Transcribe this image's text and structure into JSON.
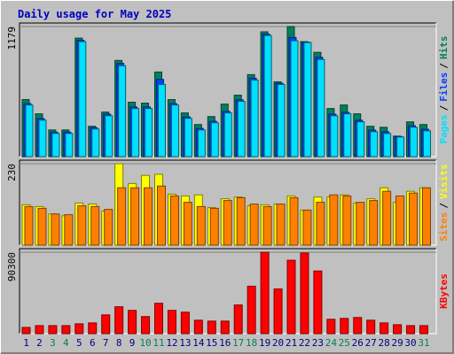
{
  "title": "Daily usage for May 2025",
  "legend_separator": "/",
  "chart_data": [
    {
      "type": "bar",
      "ylim": [
        0,
        1179
      ],
      "yticks": [
        1179
      ],
      "series": [
        {
          "name": "Hits",
          "color": "#00805c",
          "values": [
            517,
            388,
            242,
            242,
            1074,
            275,
            404,
            872,
            493,
            485,
            767,
            517,
            396,
            291,
            363,
            476,
            557,
            743,
            1131,
            678,
            1179,
            1042,
            945,
            436,
            468,
            388,
            275,
            266,
            186,
            315,
            291
          ]
        },
        {
          "name": "Files",
          "color": "#0040ff",
          "values": [
            480,
            345,
            222,
            222,
            1055,
            262,
            385,
            845,
            450,
            450,
            700,
            480,
            360,
            255,
            320,
            410,
            515,
            710,
            1110,
            665,
            1080,
            1038,
            900,
            385,
            400,
            330,
            240,
            225,
            182,
            280,
            248
          ]
        },
        {
          "name": "Pages",
          "color": "#00e0ff",
          "values": [
            468,
            331,
            210,
            210,
            1042,
            250,
            371,
            824,
            436,
            436,
            654,
            468,
            347,
            242,
            307,
            396,
            501,
            694,
            1098,
            654,
            1050,
            1034,
            880,
            371,
            388,
            315,
            226,
            210,
            178,
            266,
            234
          ]
        }
      ]
    },
    {
      "type": "bar",
      "ylim": [
        0,
        230
      ],
      "yticks": [
        230
      ],
      "series": [
        {
          "name": "Visits",
          "color": "#ffff00",
          "values": [
            114,
            109,
            88,
            83,
            119,
            116,
            96,
            230,
            174,
            197,
            200,
            144,
            139,
            142,
            106,
            131,
            136,
            111,
            114,
            116,
            139,
            99,
            136,
            136,
            142,
            119,
            131,
            162,
            121,
            152,
            162
          ]
        },
        {
          "name": "Sites",
          "color": "#ff8000",
          "values": [
            109,
            104,
            88,
            86,
            111,
            109,
            101,
            162,
            162,
            162,
            167,
            139,
            121,
            109,
            104,
            126,
            134,
            116,
            109,
            116,
            134,
            99,
            121,
            142,
            139,
            121,
            126,
            152,
            139,
            147,
            162
          ]
        }
      ]
    },
    {
      "type": "bar",
      "ylim": [
        0,
        90300
      ],
      "yticks": [
        90300
      ],
      "categories": [
        "1",
        "2",
        "3",
        "4",
        "5",
        "6",
        "7",
        "8",
        "9",
        "10",
        "11",
        "12",
        "13",
        "14",
        "15",
        "16",
        "17",
        "18",
        "19",
        "20",
        "21",
        "22",
        "23",
        "24",
        "25",
        "26",
        "27",
        "28",
        "29",
        "30",
        "31"
      ],
      "weekend_indices": [
        2,
        3,
        9,
        10,
        16,
        17,
        23,
        24,
        30
      ],
      "weekend_color": "#00805c",
      "weekday_color": "#000080",
      "series": [
        {
          "name": "KBytes",
          "color": "#ff0000",
          "values": [
            6900,
            8900,
            8900,
            8900,
            10900,
            11900,
            20800,
            29800,
            25800,
            18900,
            33700,
            25800,
            23800,
            14900,
            13900,
            13900,
            31800,
            52600,
            90300,
            49600,
            81400,
            89300,
            69500,
            15900,
            16900,
            17900,
            14900,
            11900,
            9900,
            8900,
            8900
          ]
        }
      ]
    }
  ]
}
